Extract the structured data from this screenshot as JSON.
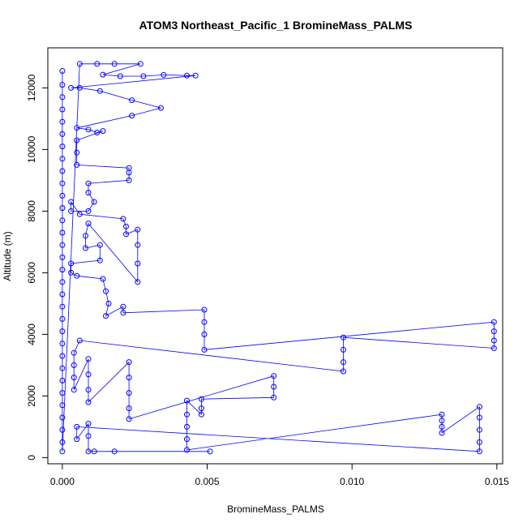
{
  "chart_data": {
    "type": "scatter",
    "title": "ATOM3 Northeast_Pacific_1 BromineMass_PALMS",
    "xlabel": "BromineMass_PALMS",
    "ylabel": "Altitude (m)",
    "xlim": [
      -0.0005,
      0.0152
    ],
    "ylim": [
      -200,
      13300
    ],
    "x_ticks": [
      0.0,
      0.005,
      0.01,
      0.015
    ],
    "x_tick_labels": [
      "0.000",
      "0.005",
      "0.010",
      "0.015"
    ],
    "y_ticks": [
      0,
      2000,
      4000,
      6000,
      8000,
      10000,
      12000
    ],
    "y_tick_labels": [
      "0",
      "2000",
      "4000",
      "6000",
      "8000",
      "10000",
      "12000"
    ],
    "grid": false,
    "marker": "open-circle",
    "color": "#0000ff",
    "series": [
      {
        "points": [
          [
            0.0,
            12550
          ],
          [
            0.0,
            12100
          ],
          [
            0.0,
            11700
          ],
          [
            0.0,
            11300
          ],
          [
            0.0,
            10900
          ],
          [
            0.0,
            10500
          ],
          [
            0.0,
            10100
          ],
          [
            0.0,
            9700
          ],
          [
            0.0,
            9300
          ],
          [
            0.0,
            8900
          ],
          [
            0.0,
            8500
          ],
          [
            0.0,
            8100
          ],
          [
            0.0,
            7700
          ],
          [
            0.0,
            7300
          ],
          [
            0.0,
            6900
          ],
          [
            0.0,
            6500
          ],
          [
            0.0,
            6100
          ],
          [
            0.0,
            5700
          ],
          [
            0.0,
            5300
          ],
          [
            0.0,
            4900
          ],
          [
            0.0,
            4500
          ],
          [
            0.0,
            4100
          ],
          [
            0.0,
            3700
          ],
          [
            0.0,
            3300
          ],
          [
            0.0,
            2900
          ],
          [
            0.0,
            2500
          ],
          [
            0.0,
            2100
          ],
          [
            0.0,
            1700
          ],
          [
            0.0,
            1300
          ],
          [
            0.0,
            900
          ],
          [
            0.0,
            500
          ],
          [
            0.0,
            200
          ],
          [
            0.0006,
            12780
          ],
          [
            0.0012,
            12780
          ],
          [
            0.0018,
            12780
          ],
          [
            0.0027,
            12780
          ],
          [
            0.0014,
            12430
          ],
          [
            0.002,
            12380
          ],
          [
            0.0028,
            12380
          ],
          [
            0.0035,
            12420
          ],
          [
            0.0043,
            12400
          ],
          [
            0.0046,
            12400
          ],
          [
            0.0003,
            12000
          ],
          [
            0.0006,
            12000
          ],
          [
            0.0013,
            11900
          ],
          [
            0.0024,
            11600
          ],
          [
            0.0034,
            11350
          ],
          [
            0.0024,
            11100
          ],
          [
            0.0005,
            10700
          ],
          [
            0.0009,
            10650
          ],
          [
            0.0012,
            10550
          ],
          [
            0.0014,
            10600
          ],
          [
            0.0005,
            10300
          ],
          [
            0.0005,
            9900
          ],
          [
            0.0005,
            9500
          ],
          [
            0.0023,
            9400
          ],
          [
            0.0023,
            9250
          ],
          [
            0.0023,
            9000
          ],
          [
            0.0009,
            8900
          ],
          [
            0.0009,
            8600
          ],
          [
            0.0011,
            8300
          ],
          [
            0.0009,
            8000
          ],
          [
            0.0003,
            8000
          ],
          [
            0.0003,
            8300
          ],
          [
            0.0006,
            7900
          ],
          [
            0.0021,
            7750
          ],
          [
            0.0022,
            7500
          ],
          [
            0.0022,
            7250
          ],
          [
            0.0026,
            7400
          ],
          [
            0.0026,
            6900
          ],
          [
            0.0026,
            6300
          ],
          [
            0.0026,
            5700
          ],
          [
            0.0009,
            7600
          ],
          [
            0.0008,
            7200
          ],
          [
            0.0008,
            6800
          ],
          [
            0.0013,
            6900
          ],
          [
            0.0013,
            6400
          ],
          [
            0.0003,
            6300
          ],
          [
            0.0003,
            6000
          ],
          [
            0.0005,
            5900
          ],
          [
            0.0014,
            5800
          ],
          [
            0.0015,
            5400
          ],
          [
            0.0016,
            5000
          ],
          [
            0.0015,
            4600
          ],
          [
            0.0021,
            4900
          ],
          [
            0.0021,
            4700
          ],
          [
            0.0049,
            4800
          ],
          [
            0.0049,
            4400
          ],
          [
            0.0049,
            4000
          ],
          [
            0.0049,
            3500
          ],
          [
            0.0149,
            4400
          ],
          [
            0.0149,
            4100
          ],
          [
            0.0149,
            3800
          ],
          [
            0.0149,
            3550
          ],
          [
            0.0097,
            3900
          ],
          [
            0.0097,
            3500
          ],
          [
            0.0097,
            3100
          ],
          [
            0.0097,
            2800
          ],
          [
            0.0006,
            3800
          ],
          [
            0.0004,
            3400
          ],
          [
            0.0004,
            3000
          ],
          [
            0.0004,
            2600
          ],
          [
            0.0004,
            2200
          ],
          [
            0.0009,
            3200
          ],
          [
            0.0009,
            2700
          ],
          [
            0.0009,
            2200
          ],
          [
            0.0009,
            1800
          ],
          [
            0.0023,
            3100
          ],
          [
            0.0023,
            2600
          ],
          [
            0.0023,
            2100
          ],
          [
            0.0023,
            1600
          ],
          [
            0.0023,
            1250
          ],
          [
            0.0073,
            2650
          ],
          [
            0.0073,
            2300
          ],
          [
            0.0073,
            1950
          ],
          [
            0.0048,
            1900
          ],
          [
            0.0048,
            1600
          ],
          [
            0.0048,
            1400
          ],
          [
            0.0043,
            1850
          ],
          [
            0.0043,
            1400
          ],
          [
            0.0043,
            1000
          ],
          [
            0.0043,
            600
          ],
          [
            0.0043,
            250
          ],
          [
            0.0131,
            1400
          ],
          [
            0.0131,
            1200
          ],
          [
            0.0131,
            1000
          ],
          [
            0.0131,
            800
          ],
          [
            0.0144,
            1650
          ],
          [
            0.0144,
            1300
          ],
          [
            0.0144,
            900
          ],
          [
            0.0144,
            500
          ],
          [
            0.0144,
            200
          ],
          [
            0.0005,
            1000
          ],
          [
            0.0005,
            600
          ],
          [
            0.0009,
            1100
          ],
          [
            0.0009,
            700
          ],
          [
            0.0009,
            200
          ],
          [
            0.0011,
            200
          ],
          [
            0.0018,
            200
          ],
          [
            0.0051,
            200
          ]
        ]
      }
    ]
  }
}
